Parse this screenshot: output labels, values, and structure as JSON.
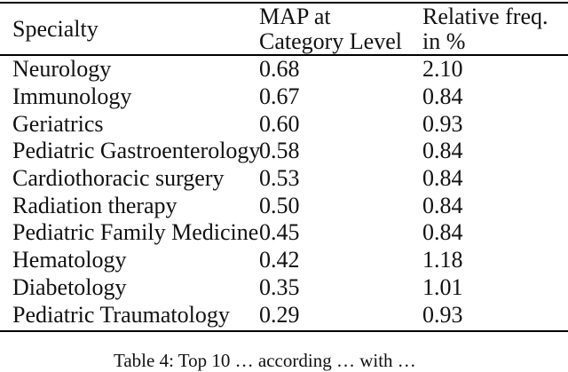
{
  "table": {
    "header": {
      "specialty": "Specialty",
      "map_line1": "MAP at",
      "map_line2": "Category Level",
      "freq_line1": "Relative freq.",
      "freq_line2": "in %"
    },
    "rows": [
      {
        "specialty": "Neurology",
        "map": "0.68",
        "freq": "2.10"
      },
      {
        "specialty": "Immunology",
        "map": "0.67",
        "freq": "0.84"
      },
      {
        "specialty": "Geriatrics",
        "map": "0.60",
        "freq": "0.93"
      },
      {
        "specialty": "Pediatric Gastroenterology",
        "map": "0.58",
        "freq": "0.84"
      },
      {
        "specialty": "Cardiothoracic surgery",
        "map": "0.53",
        "freq": "0.84"
      },
      {
        "specialty": "Radiation therapy",
        "map": "0.50",
        "freq": "0.84"
      },
      {
        "specialty": "Pediatric Family Medicine",
        "map": "0.45",
        "freq": "0.84"
      },
      {
        "specialty": "Hematology",
        "map": "0.42",
        "freq": "1.18"
      },
      {
        "specialty": "Diabetology",
        "map": "0.35",
        "freq": "1.01"
      },
      {
        "specialty": "Pediatric Traumatology",
        "map": "0.29",
        "freq": "0.93"
      }
    ]
  },
  "caption": {
    "text": "Table 4: Top 10 … according … with …"
  },
  "colors": {
    "background": "#ffffff",
    "text": "#111111",
    "rule": "#000000"
  }
}
